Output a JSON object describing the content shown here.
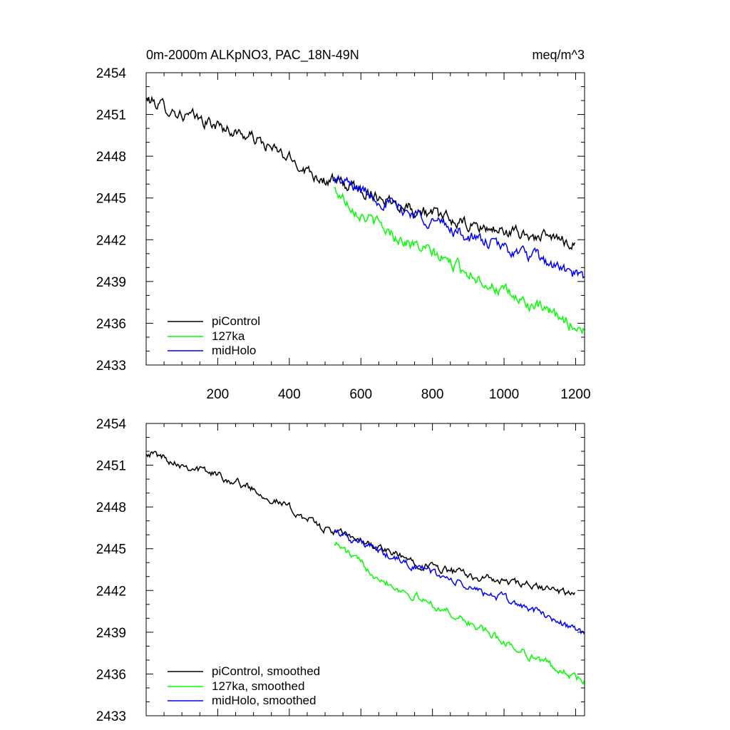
{
  "chart_data": [
    {
      "type": "line",
      "title_left": "0m-2000m ALKpNO3, PAC_18N-49N",
      "title_right": "meq/m^3",
      "xlabel": "",
      "ylabel": "",
      "xlim": [
        0,
        1225
      ],
      "ylim": [
        2433,
        2454
      ],
      "yticks": [
        "2454",
        "2451",
        "2448",
        "2445",
        "2442",
        "2439",
        "2436",
        "2433"
      ],
      "xticks": [
        "200",
        "400",
        "600",
        "800",
        "1000",
        "1200"
      ],
      "legend_position": "bottom-left",
      "series": [
        {
          "name": "piControl",
          "color": "#000000",
          "x_start": 1,
          "x_end": 1200,
          "keypoints": [
            [
              1,
              2452.1
            ],
            [
              100,
              2451.0
            ],
            [
              200,
              2450.2
            ],
            [
              300,
              2449.3
            ],
            [
              400,
              2447.8
            ],
            [
              500,
              2446.3
            ],
            [
              600,
              2445.6
            ],
            [
              700,
              2444.7
            ],
            [
              800,
              2443.8
            ],
            [
              900,
              2443.0
            ],
            [
              1000,
              2442.6
            ],
            [
              1100,
              2442.2
            ],
            [
              1200,
              2441.8
            ]
          ],
          "noise": 0.35
        },
        {
          "name": "127ka",
          "color": "#00ff00",
          "x_start": 525,
          "x_end": 1225,
          "keypoints": [
            [
              525,
              2445.6
            ],
            [
              600,
              2443.9
            ],
            [
              700,
              2442.2
            ],
            [
              800,
              2441.0
            ],
            [
              900,
              2439.7
            ],
            [
              1000,
              2438.2
            ],
            [
              1100,
              2437.0
            ],
            [
              1225,
              2435.5
            ]
          ],
          "noise": 0.35
        },
        {
          "name": "midHolo",
          "color": "#0000ff",
          "x_start": 525,
          "x_end": 1225,
          "keypoints": [
            [
              525,
              2446.4
            ],
            [
              600,
              2445.6
            ],
            [
              700,
              2444.3
            ],
            [
              800,
              2443.4
            ],
            [
              900,
              2442.2
            ],
            [
              1000,
              2441.4
            ],
            [
              1100,
              2440.6
            ],
            [
              1225,
              2439.1
            ]
          ],
          "noise": 0.35
        }
      ]
    },
    {
      "type": "line",
      "title_left": "",
      "title_right": "",
      "xlim": [
        0,
        1225
      ],
      "ylim": [
        2433,
        2454
      ],
      "yticks": [
        "2454",
        "2451",
        "2448",
        "2445",
        "2442",
        "2439",
        "2436",
        "2433"
      ],
      "xticks": [],
      "legend_position": "bottom-left",
      "series": [
        {
          "name": "piControl, smoothed",
          "color": "#000000",
          "x_start": 1,
          "x_end": 1200,
          "keypoints": [
            [
              1,
              2452.0
            ],
            [
              100,
              2451.1
            ],
            [
              200,
              2450.3
            ],
            [
              300,
              2449.3
            ],
            [
              400,
              2447.9
            ],
            [
              500,
              2446.4
            ],
            [
              600,
              2445.6
            ],
            [
              700,
              2444.5
            ],
            [
              800,
              2443.7
            ],
            [
              900,
              2443.1
            ],
            [
              1000,
              2442.6
            ],
            [
              1100,
              2442.2
            ],
            [
              1200,
              2441.7
            ]
          ],
          "noise": 0.22
        },
        {
          "name": "127ka, smoothed",
          "color": "#00ff00",
          "x_start": 525,
          "x_end": 1225,
          "keypoints": [
            [
              525,
              2445.5
            ],
            [
              600,
              2443.9
            ],
            [
              700,
              2442.2
            ],
            [
              800,
              2441.0
            ],
            [
              900,
              2439.7
            ],
            [
              1000,
              2438.3
            ],
            [
              1100,
              2437.0
            ],
            [
              1225,
              2435.4
            ]
          ],
          "noise": 0.22
        },
        {
          "name": "midHolo, smoothed",
          "color": "#0000ff",
          "x_start": 525,
          "x_end": 1225,
          "keypoints": [
            [
              525,
              2446.4
            ],
            [
              600,
              2445.4
            ],
            [
              700,
              2444.2
            ],
            [
              800,
              2443.3
            ],
            [
              900,
              2442.2
            ],
            [
              1000,
              2441.4
            ],
            [
              1100,
              2440.4
            ],
            [
              1225,
              2438.9
            ]
          ],
          "noise": 0.22
        }
      ]
    }
  ]
}
